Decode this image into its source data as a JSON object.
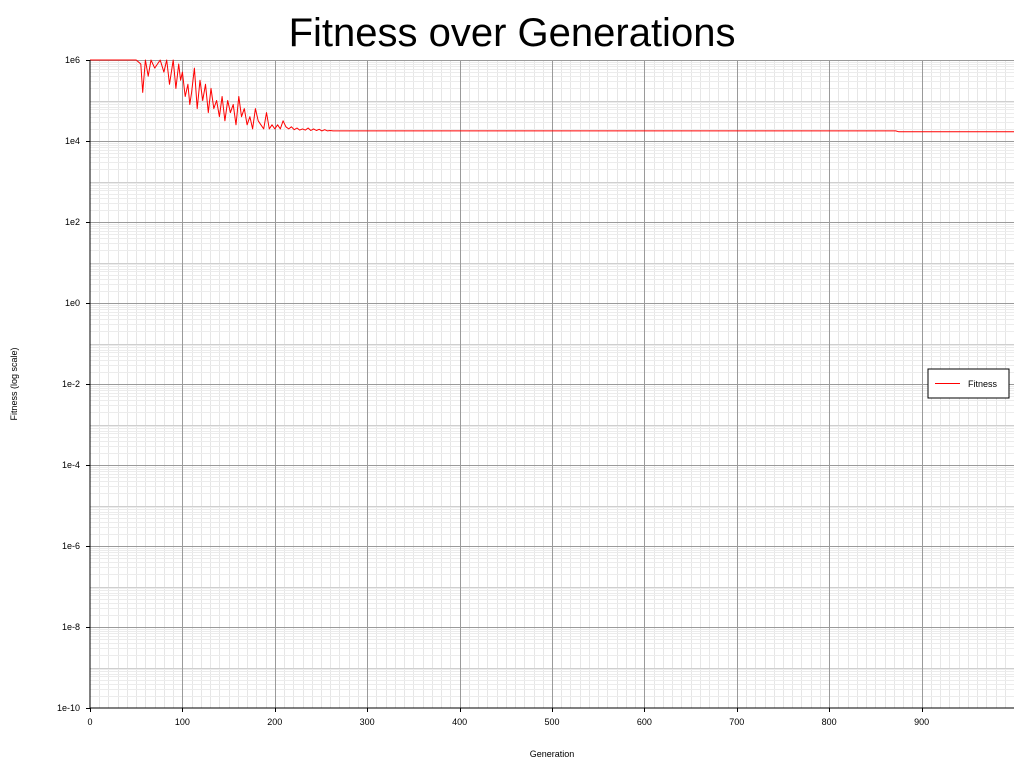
{
  "chart_data": {
    "type": "line",
    "title": "Fitness over Generations",
    "xlabel": "Generation",
    "ylabel": "Fitness (log scale)",
    "xlim": [
      0,
      1000
    ],
    "ylim_log10": [
      -10,
      6
    ],
    "y_scale": "log",
    "x_ticks": [
      0,
      100,
      200,
      300,
      400,
      500,
      600,
      700,
      800,
      900
    ],
    "x_tick_labels": [
      "0",
      "100",
      "200",
      "300",
      "400",
      "500",
      "600",
      "700",
      "800",
      "900"
    ],
    "y_tick_exponents": [
      6,
      4,
      2,
      0,
      -2,
      -4,
      -6,
      -8,
      -10
    ],
    "y_tick_labels": [
      "1e6",
      "1e4",
      "1e2",
      "1e0",
      "1e-2",
      "1e-4",
      "1e-6",
      "1e-8",
      "1e-10"
    ],
    "grid": true,
    "legend": {
      "position": "right",
      "entries": [
        "Fitness"
      ]
    },
    "series": [
      {
        "name": "Fitness",
        "color": "#ff0000",
        "x": [
          0,
          40,
          50,
          55,
          57,
          60,
          63,
          66,
          70,
          73,
          76,
          80,
          83,
          86,
          90,
          93,
          96,
          98,
          100,
          103,
          106,
          108,
          110,
          113,
          116,
          119,
          122,
          125,
          128,
          131,
          134,
          137,
          140,
          143,
          146,
          149,
          152,
          155,
          158,
          161,
          164,
          167,
          170,
          173,
          176,
          179,
          182,
          185,
          188,
          191,
          194,
          197,
          200,
          203,
          206,
          209,
          212,
          215,
          218,
          221,
          224,
          227,
          230,
          233,
          236,
          239,
          242,
          245,
          248,
          251,
          254,
          257,
          260,
          263,
          266,
          270,
          300,
          400,
          500,
          600,
          700,
          800,
          860,
          872,
          875,
          900,
          950,
          1000
        ],
        "log10_values": [
          6.0,
          6.0,
          6.0,
          5.9,
          5.2,
          6.0,
          5.6,
          6.0,
          5.8,
          5.9,
          6.0,
          5.7,
          6.0,
          5.4,
          6.0,
          5.3,
          5.9,
          5.5,
          5.7,
          5.1,
          5.4,
          4.9,
          5.2,
          5.8,
          4.8,
          5.5,
          5.0,
          5.4,
          4.7,
          5.3,
          4.8,
          5.0,
          4.6,
          5.1,
          4.5,
          5.0,
          4.7,
          4.9,
          4.4,
          5.1,
          4.6,
          4.8,
          4.4,
          4.6,
          4.3,
          4.8,
          4.5,
          4.4,
          4.3,
          4.7,
          4.3,
          4.4,
          4.3,
          4.4,
          4.3,
          4.5,
          4.35,
          4.3,
          4.35,
          4.28,
          4.32,
          4.27,
          4.3,
          4.27,
          4.32,
          4.26,
          4.3,
          4.26,
          4.29,
          4.25,
          4.28,
          4.25,
          4.26,
          4.25,
          4.25,
          4.25,
          4.25,
          4.25,
          4.25,
          4.25,
          4.25,
          4.25,
          4.25,
          4.25,
          4.23,
          4.23,
          4.23,
          4.23
        ]
      }
    ]
  }
}
